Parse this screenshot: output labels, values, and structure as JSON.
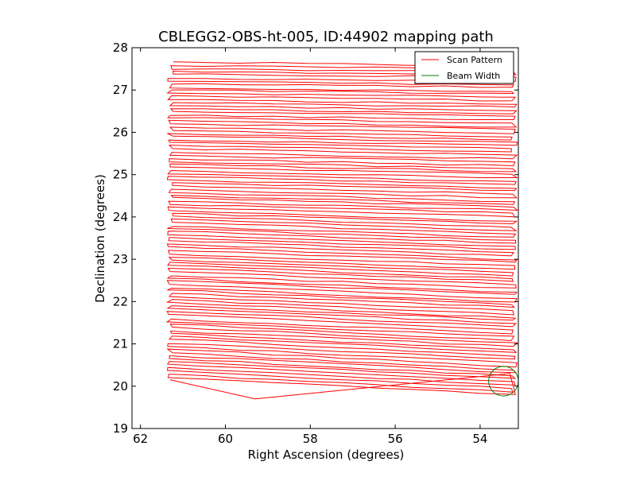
{
  "chart_data": {
    "type": "line",
    "title": "CBLEGG2-OBS-ht-005, ID:44902 mapping path",
    "xlabel": "Right Ascension (degrees)",
    "ylabel": "Declination (degrees)",
    "xlim": [
      62.2,
      53.1
    ],
    "ylim": [
      19,
      28
    ],
    "x_inverted": true,
    "xticks": [
      62,
      60,
      58,
      56,
      54
    ],
    "yticks": [
      19,
      20,
      21,
      22,
      23,
      24,
      25,
      26,
      27,
      28
    ],
    "grid": false,
    "legend": {
      "placement": "top-right",
      "entries": [
        {
          "name": "Scan Pattern",
          "color": "#ff0000",
          "marker": "line"
        },
        {
          "name": "Beam Width",
          "color": "#008000",
          "marker": "line"
        }
      ]
    },
    "series": [
      {
        "name": "Scan Pattern",
        "color": "#ff0000",
        "style": "raster",
        "ra_min": 61.3,
        "ra_max": 53.2,
        "dec_start": 20.15,
        "dec_end": 27.65,
        "legs": 104,
        "first_leg": {
          "ra": [
            61.3,
            59.3,
            53.3
          ],
          "dec": [
            20.15,
            19.7,
            20.3
          ]
        }
      },
      {
        "name": "Beam Width",
        "color": "#008000",
        "shape": "circle",
        "center": [
          53.45,
          20.12
        ],
        "radius_deg": 0.35
      }
    ]
  }
}
